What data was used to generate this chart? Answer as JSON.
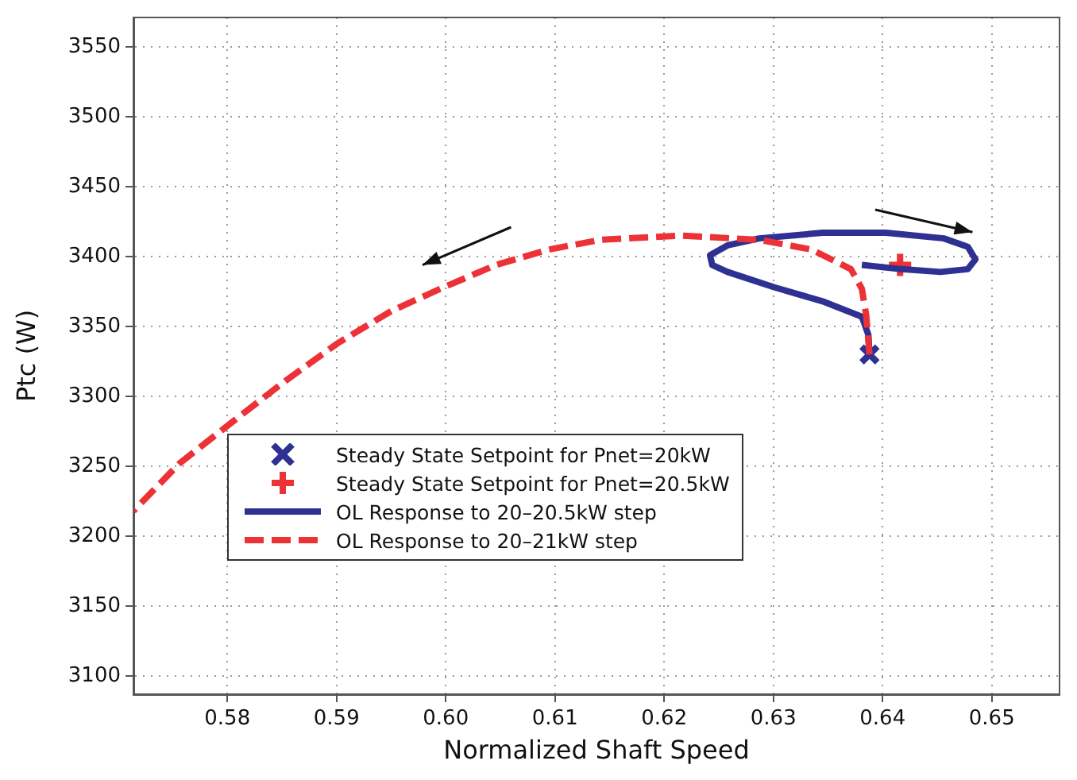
{
  "chart_data": {
    "type": "line",
    "xlabel": "Normalized Shaft Speed",
    "ylabel": "Ptc (W)",
    "xlim": [
      0.5714,
      0.6562
    ],
    "xticks": [
      {
        "value": 0.58,
        "label": "0.58"
      },
      {
        "value": 0.59,
        "label": "0.59"
      },
      {
        "value": 0.6,
        "label": "0.60"
      },
      {
        "value": 0.61,
        "label": "0.61"
      },
      {
        "value": 0.62,
        "label": "0.62"
      },
      {
        "value": 0.63,
        "label": "0.63"
      },
      {
        "value": 0.64,
        "label": "0.64"
      },
      {
        "value": 0.65,
        "label": "0.65"
      }
    ],
    "ylim": [
      3087,
      3571
    ],
    "yticks": [
      3100,
      3150,
      3200,
      3250,
      3300,
      3350,
      3400,
      3450,
      3500,
      3550
    ],
    "grid": true,
    "legend": "bottom",
    "series": [
      {
        "name": "Steady State Setpoint for Pnet=20kW",
        "type": "scatter",
        "marker": "x",
        "color": "#2e3192",
        "x": [
          0.6388
        ],
        "values": [
          3330
        ]
      },
      {
        "name": "Steady State Setpoint for Pnet=20.5kW",
        "type": "scatter",
        "marker": "cross",
        "color": "#ed3237",
        "x": [
          0.6416
        ],
        "values": [
          3394
        ]
      },
      {
        "name": "OL Response to 20–20.5kW step",
        "line_style": "solid",
        "color": "#2e3192",
        "x": [
          0.6388,
          0.6387,
          0.6381,
          0.6345,
          0.6301,
          0.6258,
          0.6244,
          0.6242,
          0.6258,
          0.6287,
          0.6345,
          0.6403,
          0.6456,
          0.6478,
          0.6485,
          0.6478,
          0.6453,
          0.6417,
          0.6381
        ],
        "values": [
          3330,
          3344,
          3357,
          3368,
          3378,
          3389,
          3394,
          3401,
          3408,
          3413,
          3417,
          3417,
          3413,
          3407,
          3398,
          3391,
          3389,
          3391,
          3394
        ]
      },
      {
        "name": "OL Response to 20–21kW step",
        "line_style": "dashed",
        "color": "#ed3237",
        "x": [
          0.6388,
          0.6385,
          0.6381,
          0.6371,
          0.6335,
          0.6287,
          0.6215,
          0.6142,
          0.6094,
          0.6046,
          0.5998,
          0.595,
          0.5901,
          0.5853,
          0.5805,
          0.5756,
          0.5714
        ],
        "values": [
          3330,
          3358,
          3377,
          3391,
          3405,
          3412,
          3415,
          3412,
          3405,
          3394,
          3378,
          3361,
          3338,
          3311,
          3282,
          3252,
          3218
        ]
      }
    ]
  }
}
